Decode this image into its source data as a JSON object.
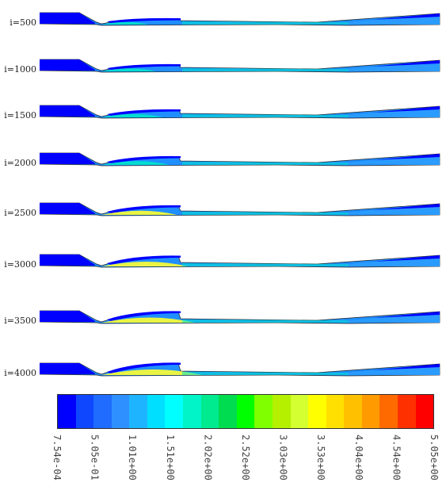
{
  "panels": [
    {
      "label": "i=500",
      "bulge": 0.25
    },
    {
      "label": "i=1000",
      "bulge": 0.35
    },
    {
      "label": "i=1500",
      "bulge": 0.45
    },
    {
      "label": "i=2000",
      "bulge": 0.55
    },
    {
      "label": "i=2500",
      "bulge": 0.65
    },
    {
      "label": "i=3000",
      "bulge": 0.8
    },
    {
      "label": "i=3500",
      "bulge": 0.9
    },
    {
      "label": "i=4000",
      "bulge": 1.0
    }
  ],
  "colorbar": {
    "swatch_colors": [
      "#0000ff",
      "#0f47ff",
      "#1f6cff",
      "#2e90ff",
      "#1fb4ff",
      "#00dfff",
      "#00ffff",
      "#00f4c8",
      "#00ea8f",
      "#00dc4f",
      "#00ff00",
      "#7fff00",
      "#b5f000",
      "#d4ff30",
      "#ffff00",
      "#ffe000",
      "#ffc000",
      "#ff9b00",
      "#ff6a00",
      "#ff3000",
      "#ff0000"
    ],
    "tick_labels": [
      "7.54e-04",
      "5.05e-01",
      "1.01e+00",
      "1.51e+00",
      "2.02e+00",
      "2.52e+00",
      "3.03e+00",
      "3.53e+00",
      "4.04e+00",
      "4.54e+00",
      "5.05e+00"
    ]
  },
  "colors": {
    "low": "#0000ff",
    "mid_low": "#1f8fff",
    "mid": "#00e5cc",
    "high": "#ffff30"
  }
}
